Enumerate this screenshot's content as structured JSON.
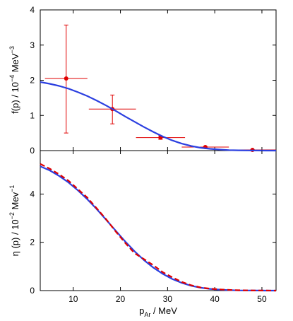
{
  "chart_data": [
    {
      "type": "scatter",
      "ylabel": {
        "main": "f(p) / 10",
        "exp": "−4",
        "unit": " MeV",
        "unit_exp": "−3"
      },
      "xlim": [
        3,
        53
      ],
      "ylim": [
        0,
        4
      ],
      "yticks": [
        0,
        1,
        2,
        3,
        4
      ],
      "grid": false,
      "series": [
        {
          "kind": "errorbar",
          "color": "#e00000",
          "points": [
            {
              "x": 8.5,
              "y": 2.05,
              "xerr": 4.5,
              "yerr_low": 1.55,
              "yerr_high": 1.52
            },
            {
              "x": 18.3,
              "y": 1.18,
              "xerr": 5.0,
              "yerr_low": 0.42,
              "yerr_high": 0.4
            },
            {
              "x": 28.5,
              "y": 0.37,
              "xerr": 5.2,
              "yerr_low": 0.05,
              "yerr_high": 0.05
            },
            {
              "x": 38.0,
              "y": 0.1,
              "xerr": 5.0,
              "yerr_low": 0.02,
              "yerr_high": 0.02
            },
            {
              "x": 48.0,
              "y": 0.02,
              "xerr": 5.0,
              "yerr_low": 0.01,
              "yerr_high": 0.01
            }
          ]
        },
        {
          "kind": "line",
          "color": "#2b3fe0",
          "x": [
            3,
            5,
            7,
            9,
            11,
            13,
            15,
            17,
            19,
            21,
            23,
            25,
            27,
            29,
            31,
            33,
            35,
            37,
            39,
            41,
            43,
            45,
            47,
            49,
            51,
            53
          ],
          "y": [
            1.95,
            1.9,
            1.84,
            1.76,
            1.66,
            1.55,
            1.42,
            1.28,
            1.13,
            0.97,
            0.82,
            0.67,
            0.53,
            0.4,
            0.29,
            0.2,
            0.13,
            0.08,
            0.05,
            0.03,
            0.015,
            0.008,
            0.004,
            0.002,
            0.001,
            0.0
          ]
        }
      ]
    },
    {
      "type": "line",
      "xlabel": {
        "main": "p",
        "sub": "Ar",
        "unit": " / MeV"
      },
      "ylabel": {
        "main": "η (p) / 10",
        "exp": "−2",
        "unit": " Mev",
        "unit_exp": "−1"
      },
      "xlim": [
        3,
        53
      ],
      "ylim": [
        0,
        5.8
      ],
      "xticks": [
        10,
        20,
        30,
        40,
        50
      ],
      "yticks": [
        0,
        2,
        4
      ],
      "grid": false,
      "series": [
        {
          "kind": "line",
          "color": "#2b3fe0",
          "x": [
            3,
            5,
            7,
            9,
            11,
            13,
            15,
            17,
            19,
            21,
            23,
            25,
            27,
            29,
            31,
            33,
            35,
            37,
            39,
            41,
            43,
            45,
            47,
            49,
            51,
            53
          ],
          "y": [
            5.15,
            4.98,
            4.75,
            4.48,
            4.15,
            3.78,
            3.37,
            2.93,
            2.48,
            2.04,
            1.63,
            1.26,
            0.95,
            0.69,
            0.48,
            0.32,
            0.2,
            0.12,
            0.07,
            0.04,
            0.02,
            0.01,
            0.006,
            0.003,
            0.001,
            0.0
          ]
        },
        {
          "kind": "dashed",
          "color": "#e00000",
          "x": [
            3,
            5,
            7,
            9,
            11,
            13,
            15,
            17,
            19,
            21,
            23,
            25,
            27,
            29,
            31,
            33,
            35,
            37,
            39,
            41,
            43,
            45,
            47,
            49,
            51,
            53
          ],
          "y": [
            5.25,
            5.05,
            4.82,
            4.55,
            4.2,
            3.85,
            3.4,
            2.95,
            2.45,
            1.98,
            1.55,
            1.3,
            1.05,
            0.76,
            0.55,
            0.36,
            0.22,
            0.13,
            0.08,
            0.05,
            0.03,
            0.015,
            0.008,
            0.004,
            0.002,
            0.0
          ]
        }
      ]
    }
  ]
}
